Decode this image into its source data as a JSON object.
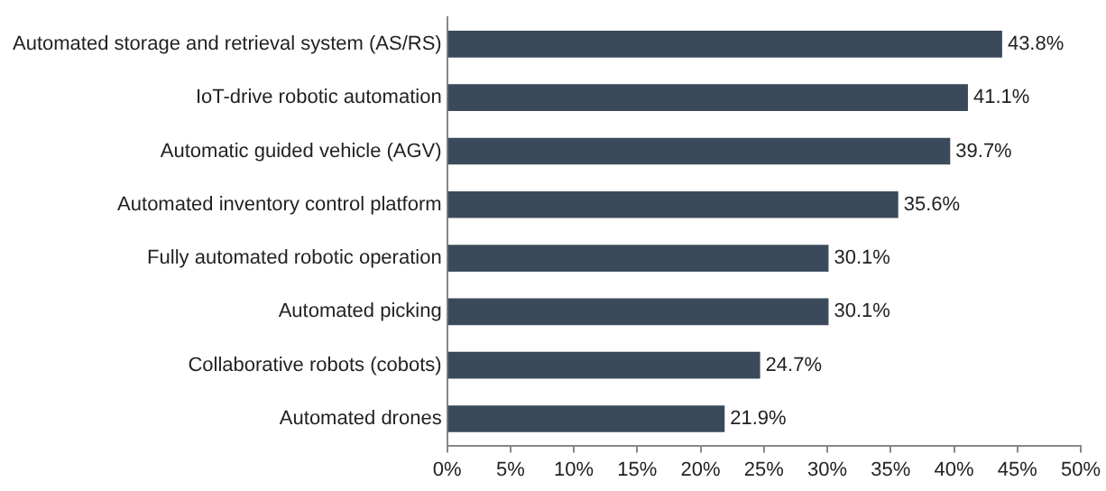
{
  "chart_data": {
    "type": "bar",
    "orientation": "horizontal",
    "categories": [
      "Automated storage and retrieval system (AS/RS)",
      "IoT-drive robotic automation",
      "Automatic guided vehicle (AGV)",
      "Automated inventory control platform",
      "Fully automated robotic operation",
      "Automated picking",
      "Collaborative robots (cobots)",
      "Automated drones"
    ],
    "values": [
      43.8,
      41.1,
      39.7,
      35.6,
      30.1,
      30.1,
      24.7,
      21.9
    ],
    "value_labels": [
      "43.8%",
      "41.1%",
      "39.7%",
      "35.6%",
      "30.1%",
      "30.1%",
      "24.7%",
      "21.9%"
    ],
    "color": "#3b4a5b",
    "xlim": [
      0,
      50
    ],
    "xticks": [
      {
        "value": 0,
        "label": "0%"
      },
      {
        "value": 5,
        "label": "5%"
      },
      {
        "value": 10,
        "label": "10%"
      },
      {
        "value": 15,
        "label": "15%"
      },
      {
        "value": 20,
        "label": "20%"
      },
      {
        "value": 25,
        "label": "25%"
      },
      {
        "value": 30,
        "label": "30%"
      },
      {
        "value": 35,
        "label": "35%"
      },
      {
        "value": 40,
        "label": "40%"
      },
      {
        "value": 45,
        "label": "45%"
      },
      {
        "value": 50,
        "label": "50%"
      }
    ],
    "grid": false,
    "legend": false
  }
}
